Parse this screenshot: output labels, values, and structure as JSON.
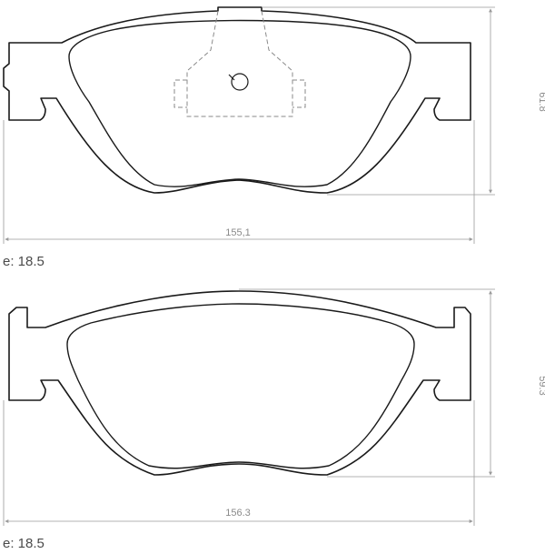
{
  "pads": [
    {
      "width_label": "155,1",
      "height_label": "61.8",
      "thickness_label": "e: 18.5"
    },
    {
      "width_label": "156.3",
      "height_label": "59.3",
      "thickness_label": "e: 18.5"
    }
  ]
}
